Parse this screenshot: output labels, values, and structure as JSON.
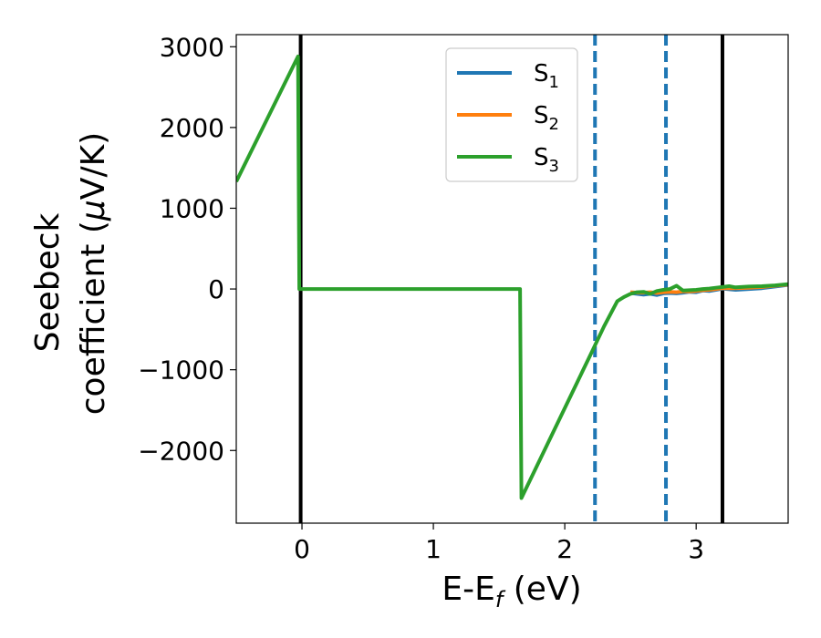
{
  "chart_data": {
    "type": "line",
    "xlabel": "E-E",
    "xlabel_sub": "f",
    "xlabel_unit": " (eV)",
    "ylabel_line1": "Seebeck",
    "ylabel_line2_pre": "coefficient  (",
    "ylabel_mu": "μ",
    "ylabel_line2_post": "V/K)",
    "xlim": [
      -0.5,
      3.7
    ],
    "ylim": [
      -2900,
      3150
    ],
    "x_ticks": [
      0,
      1,
      2,
      3
    ],
    "x_tick_labels": [
      "0",
      "1",
      "2",
      "3"
    ],
    "y_ticks": [
      -2000,
      -1000,
      0,
      1000,
      2000,
      3000
    ],
    "y_tick_labels": [
      "−2000",
      "−1000",
      "0",
      "1000",
      "2000",
      "3000"
    ],
    "grid": false,
    "legend_position": "top-center",
    "series": [
      {
        "name": "S",
        "sub": "1",
        "color": "#1f77b4",
        "points": [
          [
            2.5,
            -50
          ],
          [
            2.55,
            -60
          ],
          [
            2.6,
            -70
          ],
          [
            2.65,
            -60
          ],
          [
            2.7,
            -75
          ],
          [
            2.75,
            -55
          ],
          [
            2.8,
            -50
          ],
          [
            2.85,
            -55
          ],
          [
            2.9,
            -45
          ],
          [
            2.95,
            -35
          ],
          [
            3.0,
            -40
          ],
          [
            3.05,
            -20
          ],
          [
            3.1,
            -25
          ],
          [
            3.15,
            -10
          ],
          [
            3.2,
            5
          ],
          [
            3.3,
            -10
          ],
          [
            3.4,
            0
          ],
          [
            3.5,
            10
          ],
          [
            3.6,
            30
          ],
          [
            3.7,
            50
          ]
        ]
      },
      {
        "name": "S",
        "sub": "2",
        "color": "#ff7f0e",
        "points": [
          [
            2.5,
            -40
          ],
          [
            2.55,
            -45
          ],
          [
            2.6,
            -45
          ],
          [
            2.65,
            -40
          ],
          [
            2.7,
            -50
          ],
          [
            2.75,
            -40
          ],
          [
            2.8,
            -35
          ],
          [
            2.85,
            -40
          ],
          [
            2.9,
            -30
          ],
          [
            2.95,
            -30
          ],
          [
            3.0,
            -25
          ],
          [
            3.05,
            -15
          ],
          [
            3.1,
            -10
          ],
          [
            3.15,
            0
          ],
          [
            3.2,
            10
          ],
          [
            3.3,
            10
          ],
          [
            3.4,
            15
          ],
          [
            3.5,
            25
          ],
          [
            3.6,
            40
          ],
          [
            3.7,
            55
          ]
        ]
      },
      {
        "name": "S",
        "sub": "3",
        "color": "#2ca02c",
        "points": [
          [
            -0.5,
            1330
          ],
          [
            -0.03,
            2880
          ],
          [
            -0.02,
            0
          ],
          [
            1.66,
            0
          ],
          [
            1.67,
            -2590
          ],
          [
            2.2,
            -800
          ],
          [
            2.3,
            -460
          ],
          [
            2.4,
            -150
          ],
          [
            2.45,
            -100
          ],
          [
            2.5,
            -60
          ],
          [
            2.55,
            -40
          ],
          [
            2.6,
            -35
          ],
          [
            2.65,
            -60
          ],
          [
            2.7,
            -25
          ],
          [
            2.75,
            -10
          ],
          [
            2.8,
            0
          ],
          [
            2.85,
            40
          ],
          [
            2.9,
            -20
          ],
          [
            2.95,
            -15
          ],
          [
            3.0,
            -10
          ],
          [
            3.05,
            0
          ],
          [
            3.1,
            5
          ],
          [
            3.15,
            15
          ],
          [
            3.2,
            25
          ],
          [
            3.25,
            35
          ],
          [
            3.3,
            20
          ],
          [
            3.4,
            30
          ],
          [
            3.5,
            35
          ],
          [
            3.6,
            45
          ],
          [
            3.7,
            60
          ]
        ]
      }
    ],
    "vlines": [
      {
        "x": -0.01,
        "style": "solid",
        "color": "#000000"
      },
      {
        "x": 3.2,
        "style": "solid",
        "color": "#000000"
      },
      {
        "x": 2.23,
        "style": "dashed",
        "color": "#1f77b4"
      },
      {
        "x": 2.77,
        "style": "dashed",
        "color": "#1f77b4"
      }
    ]
  }
}
